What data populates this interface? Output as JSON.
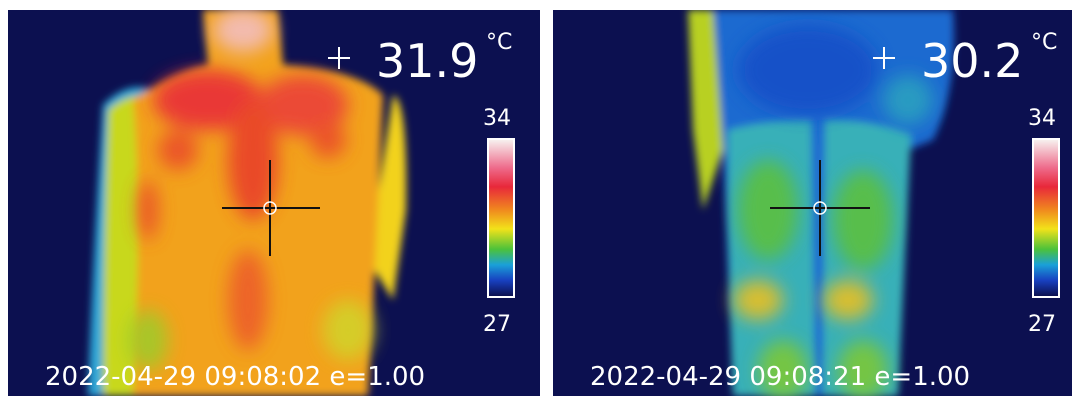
{
  "panels": [
    {
      "temperature": 31.9,
      "unit": "°C",
      "scale_max": 34,
      "scale_min": 27,
      "timestamp": "2022-04-29 09:08:02",
      "emissivity": "e=1.00"
    },
    {
      "temperature": 30.2,
      "unit": "°C",
      "scale_max": 34,
      "scale_min": 27,
      "timestamp": "2022-04-29 09:08:21",
      "emissivity": "e=1.00"
    }
  ]
}
